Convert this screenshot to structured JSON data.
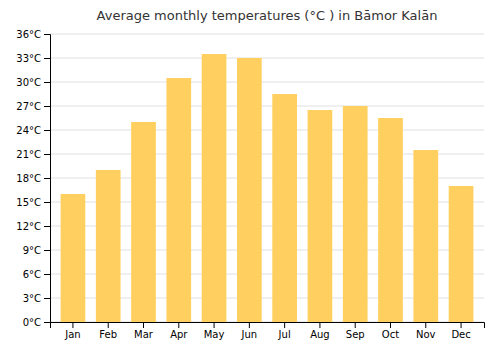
{
  "chart_data": {
    "type": "bar",
    "title": "Average monthly temperatures (°C ) in Bāmor Kalān",
    "categories": [
      "Jan",
      "Feb",
      "Mar",
      "Apr",
      "May",
      "Jun",
      "Jul",
      "Aug",
      "Sep",
      "Oct",
      "Nov",
      "Dec"
    ],
    "values": [
      16,
      19,
      25,
      30.5,
      33.5,
      33,
      28.5,
      26.5,
      27,
      25.5,
      21.5,
      17
    ],
    "color": "#FFD060",
    "ylim": [
      0,
      36
    ],
    "yticks": [
      {
        "value": 0,
        "label": "0°C"
      },
      {
        "value": 3,
        "label": "3°C"
      },
      {
        "value": 6,
        "label": "6°C"
      },
      {
        "value": 9,
        "label": "9°C"
      },
      {
        "value": 12,
        "label": "12°C"
      },
      {
        "value": 15,
        "label": "15°C"
      },
      {
        "value": 18,
        "label": "18°C"
      },
      {
        "value": 21,
        "label": "21°C"
      },
      {
        "value": 24,
        "label": "24°C"
      },
      {
        "value": 27,
        "label": "27°C"
      },
      {
        "value": 30,
        "label": "30°C"
      },
      {
        "value": 33,
        "label": "33°C"
      },
      {
        "value": 36,
        "label": "36°C"
      }
    ],
    "grid": true
  }
}
